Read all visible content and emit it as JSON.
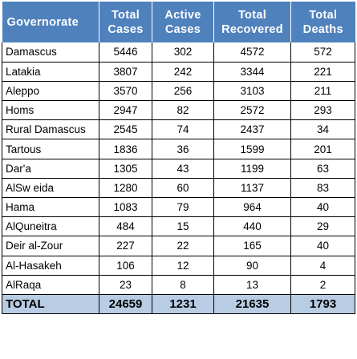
{
  "columns": [
    {
      "line1": "Governorate",
      "line2": ""
    },
    {
      "line1": "Total",
      "line2": "Cases"
    },
    {
      "line1": "Active",
      "line2": "Cases"
    },
    {
      "line1": "Total",
      "line2": "Recovered"
    },
    {
      "line1": "Total",
      "line2": "Deaths"
    }
  ],
  "rows": [
    {
      "gov": "Damascus",
      "total_cases": "5446",
      "active_cases": "302",
      "recovered": "4572",
      "deaths": "572"
    },
    {
      "gov": "Latakia",
      "total_cases": "3807",
      "active_cases": "242",
      "recovered": "3344",
      "deaths": "221"
    },
    {
      "gov": "Aleppo",
      "total_cases": "3570",
      "active_cases": "256",
      "recovered": "3103",
      "deaths": "211"
    },
    {
      "gov": "Homs",
      "total_cases": "2947",
      "active_cases": "82",
      "recovered": "2572",
      "deaths": "293"
    },
    {
      "gov": "Rural Damascus",
      "total_cases": "2545",
      "active_cases": "74",
      "recovered": "2437",
      "deaths": "34"
    },
    {
      "gov": "Tartous",
      "total_cases": "1836",
      "active_cases": "36",
      "recovered": "1599",
      "deaths": "201"
    },
    {
      "gov": "Dar'a",
      "total_cases": "1305",
      "active_cases": "43",
      "recovered": "1199",
      "deaths": "63"
    },
    {
      "gov": "AlSw eida",
      "total_cases": "1280",
      "active_cases": "60",
      "recovered": "1137",
      "deaths": "83"
    },
    {
      "gov": "Hama",
      "total_cases": "1083",
      "active_cases": "79",
      "recovered": "964",
      "deaths": "40"
    },
    {
      "gov": "AlQuneitra",
      "total_cases": "484",
      "active_cases": "15",
      "recovered": "440",
      "deaths": "29"
    },
    {
      "gov": "Deir al-Zour",
      "total_cases": "227",
      "active_cases": "22",
      "recovered": "165",
      "deaths": "40"
    },
    {
      "gov": "Al-Hasakeh",
      "total_cases": "106",
      "active_cases": "12",
      "recovered": "90",
      "deaths": "4"
    },
    {
      "gov": "AlRaqa",
      "total_cases": "23",
      "active_cases": "8",
      "recovered": "13",
      "deaths": "2"
    }
  ],
  "total": {
    "gov": "TOTAL",
    "total_cases": "24659",
    "active_cases": "1231",
    "recovered": "21635",
    "deaths": "1793"
  },
  "colors": {
    "header_bg": "#4f81bd",
    "header_text": "#ffffff",
    "total_bg": "#b8cce4",
    "border": "#000000"
  }
}
